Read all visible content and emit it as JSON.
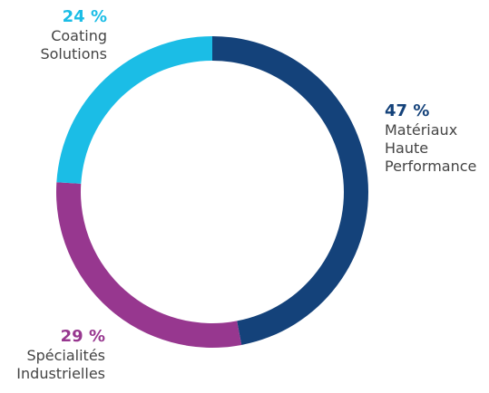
{
  "chart_data": {
    "type": "donut",
    "categories": [
      "Matériaux Haute Performance",
      "Spécialités Industrielles",
      "Coating Solutions"
    ],
    "values": [
      47,
      29,
      24
    ],
    "value_labels": [
      "47 %",
      "29 %",
      "24 %"
    ],
    "colors": [
      "#14427a",
      "#97378f",
      "#1bbde6"
    ]
  }
}
